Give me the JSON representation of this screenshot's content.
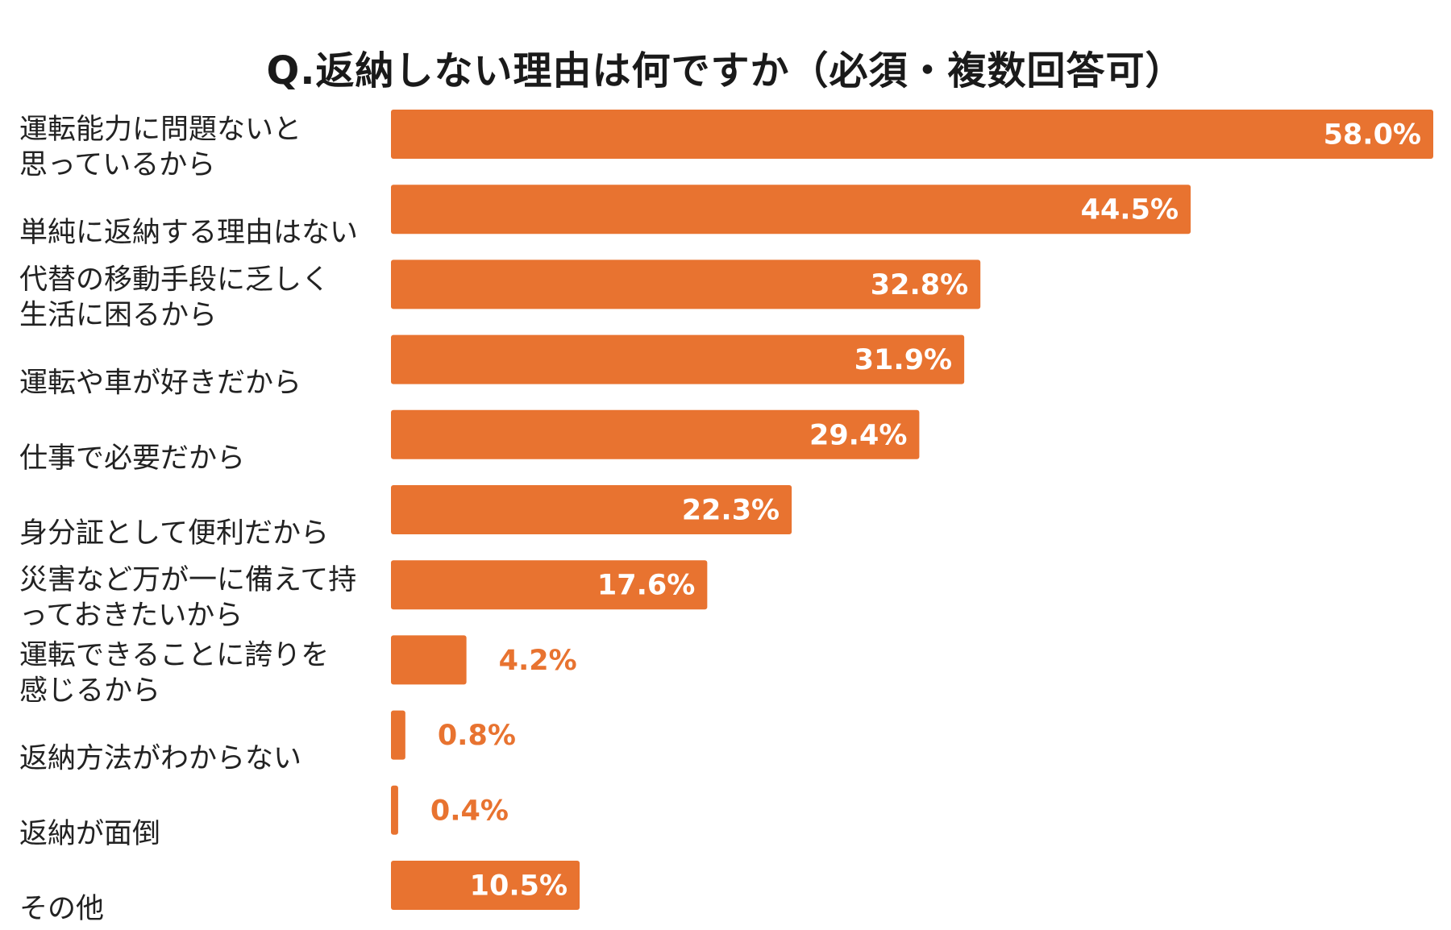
{
  "chart_data": {
    "type": "bar",
    "orientation": "horizontal",
    "title": "Q.返納しない理由は何ですか（必須・複数回答可）",
    "categories": [
      [
        "運転能力に問題ないと",
        "思っているから"
      ],
      [
        "単純に返納する理由はない"
      ],
      [
        "代替の移動手段に乏しく",
        "生活に困るから"
      ],
      [
        "運転や車が好きだから"
      ],
      [
        "仕事で必要だから"
      ],
      [
        "身分証として便利だから"
      ],
      [
        "災害など万が一に備えて持",
        "っておきたいから"
      ],
      [
        "運転できることに誇りを",
        "感じるから"
      ],
      [
        "返納方法がわからない"
      ],
      [
        "返納が面倒"
      ],
      [
        "その他"
      ]
    ],
    "values": [
      58.0,
      44.5,
      32.8,
      31.9,
      29.4,
      22.3,
      17.6,
      4.2,
      0.8,
      0.4,
      10.5
    ],
    "value_labels": [
      "58.0%",
      "44.5%",
      "32.8%",
      "31.9%",
      "29.4%",
      "22.3%",
      "17.6%",
      "4.2%",
      "0.8%",
      "0.4%",
      "10.5%"
    ],
    "xlim": [
      0,
      58.0
    ],
    "grid": false,
    "legend": "none",
    "colors": {
      "bar": "#E87330",
      "label_inside": "#ffffff",
      "label_outside": "#E87330"
    }
  }
}
